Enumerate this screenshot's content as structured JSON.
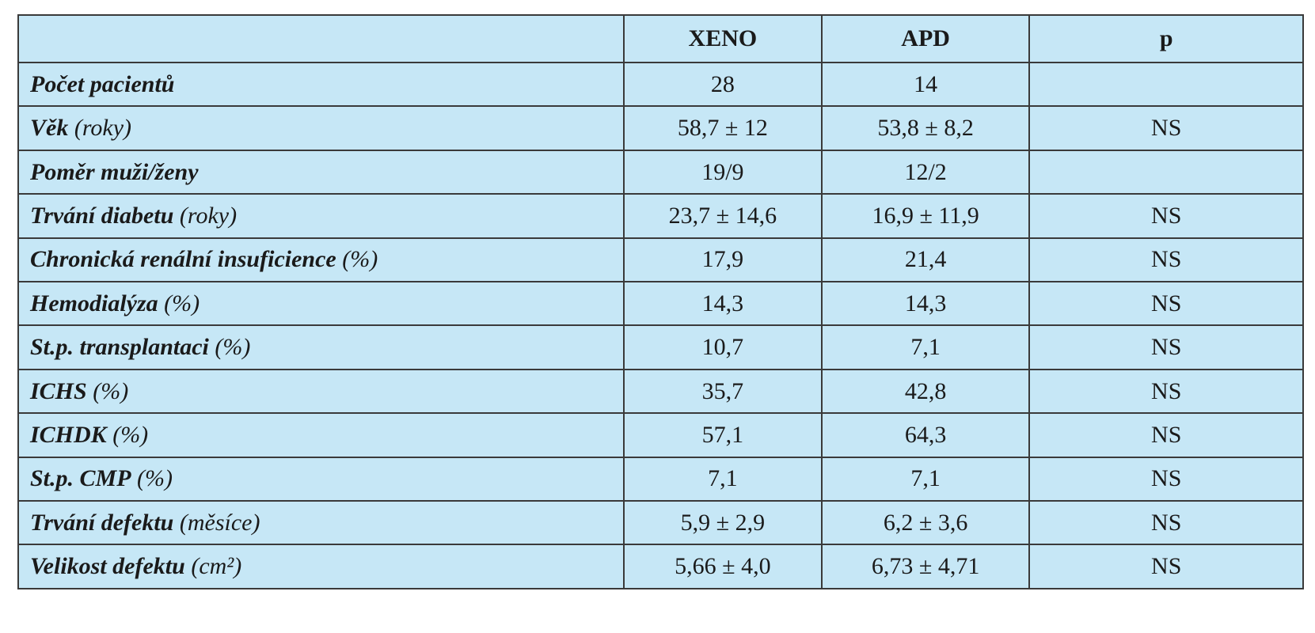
{
  "table": {
    "header": {
      "xeno": "XENO",
      "apd": "APD",
      "p": "p"
    },
    "rows": [
      {
        "label": "Počet pacientů",
        "xeno": "28",
        "apd": "14"
      },
      {
        "label": "Věk",
        "unit": "(roky)",
        "xeno": "58,7 ± 12",
        "apd": "53,8 ± 8,2",
        "p": "NS"
      },
      {
        "label": "Poměr muži/ženy",
        "xeno": "19/9",
        "apd": "12/2"
      },
      {
        "label": "Trvání diabetu",
        "unit": "(roky)",
        "xeno": "23,7 ± 14,6",
        "apd": "16,9 ± 11,9",
        "p": "NS"
      },
      {
        "label": "Chronická renální insuficience",
        "unit": "(%)",
        "xeno": "17,9",
        "apd": "21,4",
        "p": "NS"
      },
      {
        "label": "Hemodialýza",
        "unit": "(%)",
        "xeno": "14,3",
        "apd": "14,3",
        "p": "NS"
      },
      {
        "label": "St.p. transplantaci",
        "unit": "(%)",
        "xeno": "10,7",
        "apd": "7,1",
        "p": "NS"
      },
      {
        "label": "ICHS",
        "unit": "(%)",
        "xeno": "35,7",
        "apd": "42,8",
        "p": "NS"
      },
      {
        "label": "ICHDK",
        "unit": "(%)",
        "xeno": "57,1",
        "apd": "64,3",
        "p": "NS"
      },
      {
        "label": "St.p. CMP",
        "unit": "(%)",
        "xeno": "7,1",
        "apd": "7,1",
        "p": "NS"
      },
      {
        "label": "Trvání defektu",
        "unit": "(měsíce)",
        "xeno": "5,9 ± 2,9",
        "apd": "6,2 ± 3,6",
        "p": "NS"
      },
      {
        "label": "Velikost defektu",
        "unit": "(cm²)",
        "xeno": "5,66 ± 4,0",
        "apd": "6,73 ± 4,71",
        "p": "NS"
      }
    ]
  }
}
